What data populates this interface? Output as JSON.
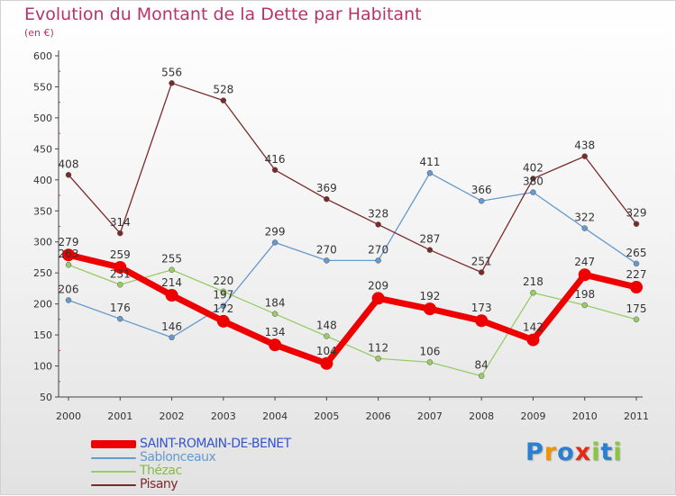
{
  "header": {
    "title": "Evolution du Montant de la Dette par Habitant",
    "unit": "(en €)"
  },
  "logo": {
    "text": "Proxiti",
    "letters": [
      {
        "ch": "P",
        "color": "#2a7fd0"
      },
      {
        "ch": "r",
        "color": "#f29400"
      },
      {
        "ch": "o",
        "color": "#2a7fd0"
      },
      {
        "ch": "x",
        "color": "#e32b1a"
      },
      {
        "ch": "i",
        "color": "#8cc63f"
      },
      {
        "ch": "t",
        "color": "#2a7fd0"
      },
      {
        "ch": "i",
        "color": "#8cc63f"
      }
    ]
  },
  "chart_data": {
    "type": "line",
    "title": "Evolution du Montant de la Dette par Habitant",
    "ylabel": "(en €)",
    "xlabel": "",
    "x": [
      "2000",
      "2001",
      "2002",
      "2003",
      "2004",
      "2005",
      "2006",
      "2007",
      "2008",
      "2009",
      "2010",
      "2011"
    ],
    "ylim": [
      50,
      600
    ],
    "yticks": [
      50,
      100,
      150,
      200,
      250,
      300,
      350,
      400,
      450,
      500,
      550,
      600
    ],
    "grid": false,
    "legend_position": "bottom-left",
    "series": [
      {
        "name": "SAINT-ROMAIN-DE-BENET",
        "color": "#ee0000",
        "style": "thick",
        "values": [
          279,
          259,
          214,
          172,
          134,
          104,
          209,
          192,
          173,
          142,
          247,
          227
        ]
      },
      {
        "name": "Sablonceaux",
        "color": "#6699cc",
        "style": "thin",
        "values": [
          206,
          176,
          146,
          197,
          299,
          270,
          270,
          411,
          366,
          380,
          322,
          265
        ]
      },
      {
        "name": "Thézac",
        "color": "#99cc66",
        "style": "thin",
        "values": [
          263,
          231,
          255,
          220,
          184,
          148,
          112,
          106,
          84,
          218,
          198,
          175
        ]
      },
      {
        "name": "Pisany",
        "color": "#7a2a2a",
        "style": "thin",
        "values": [
          408,
          314,
          556,
          528,
          416,
          369,
          328,
          287,
          251,
          402,
          438,
          329
        ]
      }
    ]
  }
}
